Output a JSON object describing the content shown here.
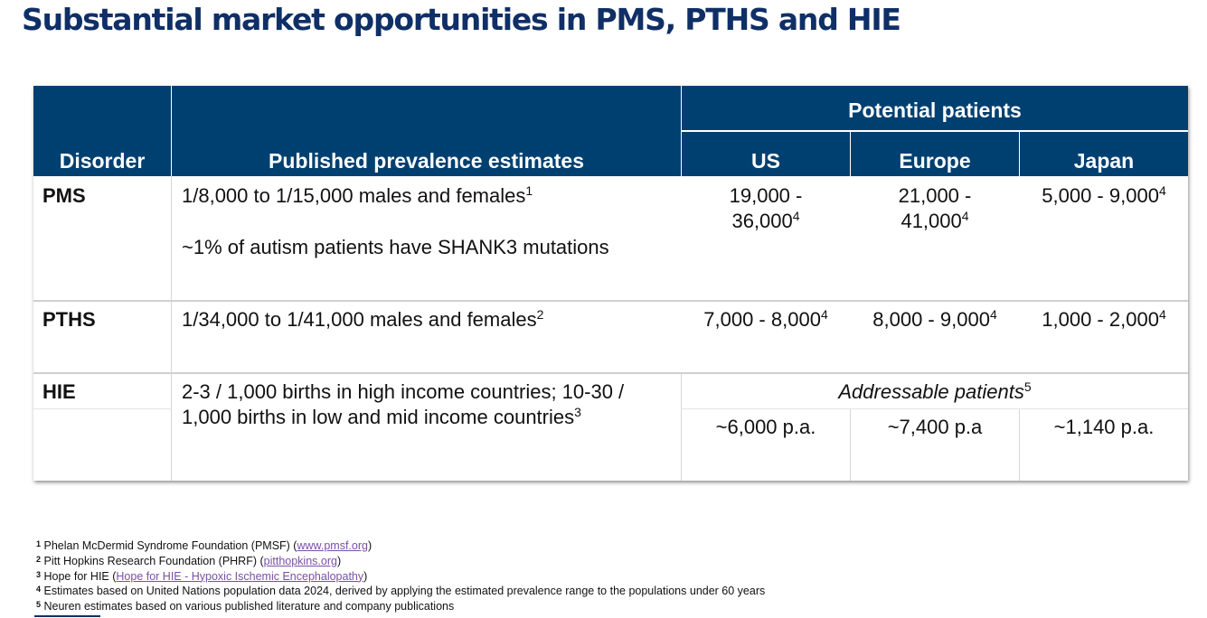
{
  "title": "Substantial market opportunities in PMS, PTHS and HIE",
  "colors": {
    "title": "#0f2f66",
    "header_bg": "#004070",
    "link": "#7b4fa6"
  },
  "table": {
    "headers": {
      "disorder": "Disorder",
      "prevalence": "Published prevalence estimates",
      "potential_patients": "Potential patients",
      "us": "US",
      "europe": "Europe",
      "japan": "Japan"
    },
    "rows": [
      {
        "disorder": "PMS",
        "prevalence_1": "1/8,000 to 1/15,000 males and females",
        "prevalence_1_fn": "1",
        "prevalence_2": "~1% of autism patients have SHANK3 mutations",
        "us_line1": "19,000 -",
        "us_line2": "36,000",
        "us_fn": "4",
        "europe_line1": "21,000 -",
        "europe_line2": "41,000",
        "europe_fn": "4",
        "japan": "5,000 - 9,000",
        "japan_fn": "4"
      },
      {
        "disorder": "PTHS",
        "prevalence_1": "1/34,000 to 1/41,000 males and females",
        "prevalence_1_fn": "2",
        "us": "7,000 - 8,000",
        "us_fn": "4",
        "europe": "8,000 - 9,000",
        "europe_fn": "4",
        "japan": "1,000 - 2,000",
        "japan_fn": "4"
      },
      {
        "disorder": "HIE",
        "prevalence_line1": "2-3 / 1,000 births in high income countries; 10-30 /",
        "prevalence_line2": "1,000 births in low and mid income countries",
        "prevalence_fn": "3",
        "addressable": "Addressable patients",
        "addressable_fn": "5",
        "us": "~6,000 p.a.",
        "europe": "~7,400 p.a",
        "japan": "~1,140 p.a."
      }
    ]
  },
  "footnotes": [
    {
      "num": "1",
      "text": "Phelan McDermid Syndrome Foundation (PMSF) (",
      "link": "www.pmsf.org",
      "after": ")"
    },
    {
      "num": "2",
      "text": "Pitt Hopkins Research Foundation (PHRF) (",
      "link": "pitthopkins.org",
      "after": ")"
    },
    {
      "num": "3",
      "text": "Hope for HIE (",
      "link": "Hope for HIE - Hypoxic Ischemic Encephalopathy",
      "after": ")"
    },
    {
      "num": "4",
      "text": "Estimates based on United Nations population data 2024, derived by applying the estimated prevalence range to the populations under 60 years"
    },
    {
      "num": "5",
      "text": "Neuren estimates based on various published literature and company publications"
    }
  ]
}
